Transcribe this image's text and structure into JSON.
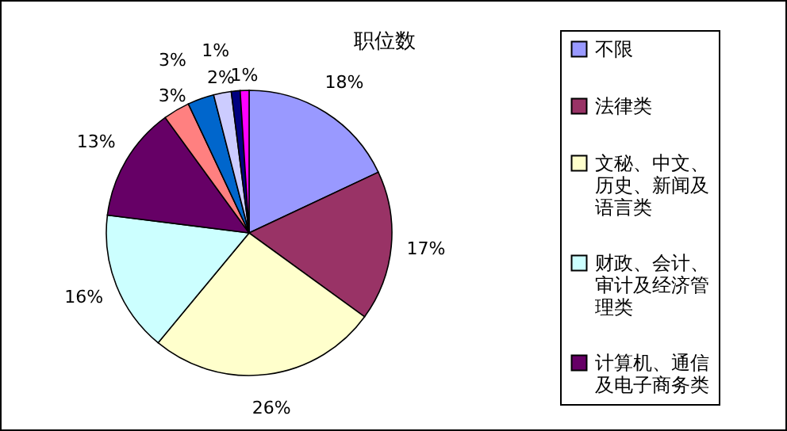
{
  "chart_data": {
    "type": "pie",
    "title": "职位数",
    "categories": [
      "不限",
      "法律类",
      "文秘、中文、历史、新闻及语言类",
      "财政、会计、审计及经济管理类",
      "计算机、通信及电子商务类",
      null,
      null,
      null,
      null,
      null
    ],
    "values": [
      18,
      17,
      26,
      16,
      13,
      3,
      3,
      2,
      1,
      1
    ],
    "value_labels": [
      "18%",
      "17%",
      "26%",
      "16%",
      "13%",
      "3%",
      "3%",
      "2%",
      "1%",
      "1%"
    ],
    "colors": [
      "#9999ff",
      "#993366",
      "#ffffcc",
      "#ccffff",
      "#660066",
      "#ff8080",
      "#0066cc",
      "#ccccff",
      "#000080",
      "#ff00ff"
    ],
    "legend": "right"
  }
}
